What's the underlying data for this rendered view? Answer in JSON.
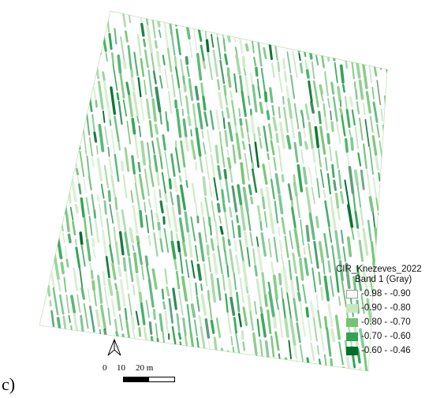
{
  "map": {
    "layer_name": "CIR_Knezeves_2022",
    "band_label": "Band 1 (Gray)",
    "legend": [
      {
        "label": "-0.98 - -0.90",
        "color": "#f7fcf5"
      },
      {
        "label": "-0.90 - -0.80",
        "color": "#c7e9c0"
      },
      {
        "label": "-0.80 - -0.70",
        "color": "#74c476"
      },
      {
        "label": "-0.70 - -0.60",
        "color": "#31a354"
      },
      {
        "label": "-0.60 - -0.46",
        "color": "#006d2c"
      }
    ]
  },
  "scalebar": {
    "labels": [
      "0",
      "10",
      "20 m"
    ],
    "north_icon": "north-arrow-icon"
  },
  "panel_label": "c)"
}
